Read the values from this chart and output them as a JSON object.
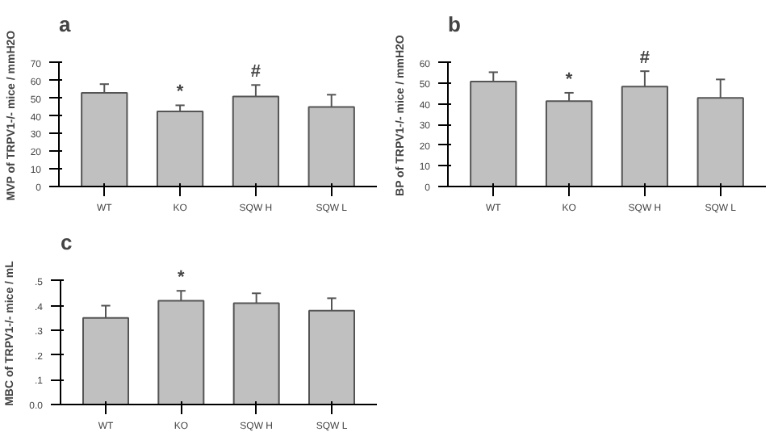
{
  "chart_data": [
    {
      "type": "bar",
      "title": "a",
      "ylabel": "MVP of TRPV1-/- mice / mmH2O",
      "categories": [
        "WT",
        "KO",
        "SQW H",
        "SQW L"
      ],
      "values": [
        53,
        42.5,
        51,
        45
      ],
      "errors": [
        [
          53,
          58
        ],
        [
          42.5,
          46
        ],
        [
          51,
          57.5
        ],
        [
          45,
          52
        ]
      ],
      "color": "#c0c0c0",
      "ylim": [
        0,
        70
      ],
      "yticks": [
        0,
        10,
        20,
        30,
        40,
        50,
        60,
        70
      ],
      "grid": false,
      "annotations": [
        {
          "text": "*",
          "x": "KO",
          "y": 46
        },
        {
          "text": "#",
          "x": "SQW H",
          "y": 57.5
        }
      ]
    },
    {
      "type": "bar",
      "title": "b",
      "ylabel": "BP of TRPV1-/- mice / mmH2O",
      "categories": [
        "WT",
        "KO",
        "SQW H",
        "SQW L"
      ],
      "values": [
        51,
        41.5,
        48.5,
        43
      ],
      "errors": [
        [
          51,
          55.5
        ],
        [
          41.5,
          45.5
        ],
        [
          48.5,
          56
        ],
        [
          43,
          52
        ]
      ],
      "color": "#c0c0c0",
      "ylim": [
        0,
        60
      ],
      "yticks": [
        0,
        10,
        20,
        30,
        40,
        50,
        60
      ],
      "grid": false,
      "annotations": [
        {
          "text": "*",
          "x": "KO",
          "y": 45.5
        },
        {
          "text": "#",
          "x": "SQW H",
          "y": 56
        }
      ]
    },
    {
      "type": "bar",
      "title": "c",
      "ylabel": "MBC of TRPV1-/- mice / mL",
      "categories": [
        "WT",
        "KO",
        "SQW H",
        "SQW L"
      ],
      "values": [
        0.35,
        0.42,
        0.41,
        0.38
      ],
      "errors": [
        [
          0.35,
          0.4
        ],
        [
          0.42,
          0.46
        ],
        [
          0.41,
          0.45
        ],
        [
          0.38,
          0.43
        ]
      ],
      "color": "#c0c0c0",
      "ylim": [
        0,
        0.5
      ],
      "yticks": [
        {
          "value": 0,
          "label": "0.0"
        },
        {
          "value": 0.1,
          "label": ".1"
        },
        {
          "value": 0.2,
          "label": ".2"
        },
        {
          "value": 0.3,
          "label": ".3"
        },
        {
          "value": 0.4,
          "label": ".4"
        },
        {
          "value": 0.5,
          "label": ".5"
        }
      ],
      "grid": false,
      "annotations": [
        {
          "text": "*",
          "x": "KO",
          "y": 0.46
        }
      ]
    }
  ]
}
